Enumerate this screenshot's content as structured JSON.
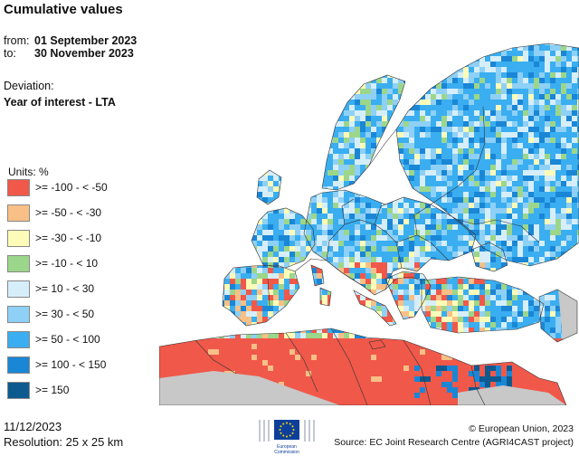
{
  "header": {
    "title": "Cumulative values",
    "from_label": "from:",
    "from_date": "01 September 2023",
    "to_label": "to:",
    "to_date": "30 November 2023",
    "deviation_label": "Deviation:",
    "deviation_value": "Year of interest - LTA"
  },
  "legend": {
    "units": "Units: %",
    "items": [
      {
        "label": ">= -100 - < -50",
        "color": "#f0584a"
      },
      {
        "label": ">= -50 - < -30",
        "color": "#f8bf86"
      },
      {
        "label": ">= -30 - < -10",
        "color": "#fcfcb8"
      },
      {
        "label": ">= -10 - < 10",
        "color": "#9cd68a"
      },
      {
        "label": ">= 10 - < 30",
        "color": "#d6eefa"
      },
      {
        "label": ">= 30 - < 50",
        "color": "#8ed0f6"
      },
      {
        "label": ">= 50 - < 100",
        "color": "#3aaef0"
      },
      {
        "label": ">= 100 - < 150",
        "color": "#1a86d6"
      },
      {
        "label": ">= 150",
        "color": "#0d5a90"
      }
    ]
  },
  "footer": {
    "date": "11/12/2023",
    "resolution": "Resolution: 25 x 25 km",
    "copyright": "© European Union, 2023",
    "source": "Source: EC Joint Research Centre (AGRI4CAST project)",
    "logo_line1": "European",
    "logo_line2": "Commission"
  },
  "map": {
    "colors": {
      "sea": "#ffffff",
      "no_data": "#c8c8c8",
      "border": "#333333"
    }
  }
}
